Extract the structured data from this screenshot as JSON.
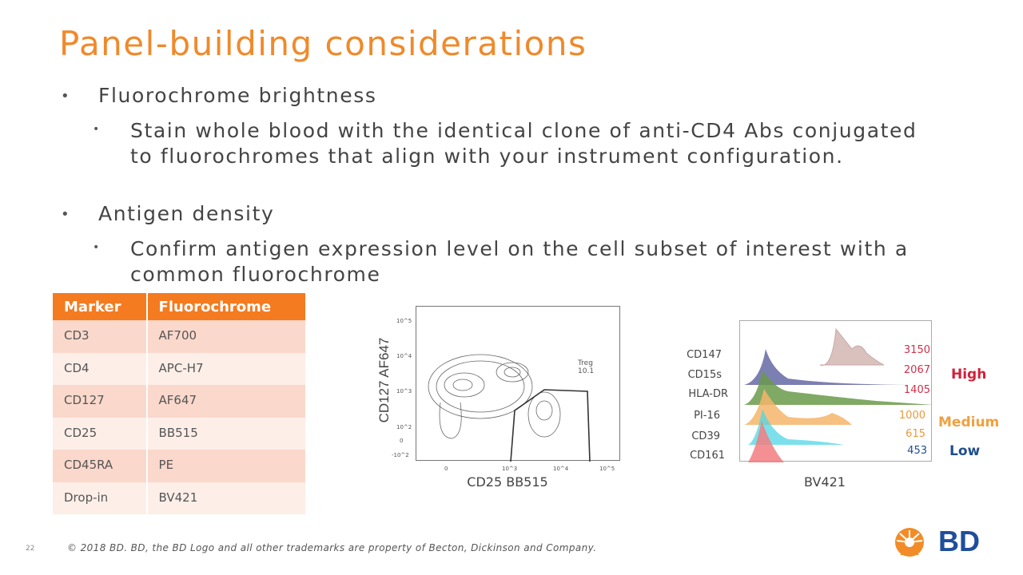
{
  "title": "Panel-building considerations",
  "bullets": [
    {
      "text": "Fluorochrome brightness",
      "sub": "Stain whole blood with the identical clone of anti-CD4 Abs conjugated to fluorochromes that align with your instrument configuration."
    },
    {
      "text": "Antigen density",
      "sub": "Confirm antigen expression level on the cell subset of interest with a common fluorochrome"
    }
  ],
  "table": {
    "headers": [
      "Marker",
      "Fluorochrome"
    ],
    "rows": [
      [
        "CD3",
        "AF700"
      ],
      [
        "CD4",
        "APC-H7"
      ],
      [
        "CD127",
        "AF647"
      ],
      [
        "CD25",
        "BB515"
      ],
      [
        "CD45RA",
        "PE"
      ],
      [
        "Drop-in",
        "BV421"
      ]
    ]
  },
  "contour_plot": {
    "xlabel": "CD25 BB515",
    "ylabel": "CD127 AF647",
    "gate_label": "Treg",
    "gate_value": "10.1",
    "yticks": [
      "10^5",
      "10^4",
      "10^3",
      "10^2",
      "0",
      "-10^2"
    ],
    "xticks": [
      "0",
      "10^3",
      "10^4",
      "10^5"
    ]
  },
  "histogram": {
    "xlabel": "BV421",
    "rows": [
      {
        "marker": "CD147",
        "mfi": "3150",
        "color": "#c9a9a6",
        "valcolor": "#d0314a"
      },
      {
        "marker": "CD15s",
        "mfi": "2067",
        "color": "#5b5f9e",
        "valcolor": "#d0314a"
      },
      {
        "marker": "HLA-DR",
        "mfi": "1405",
        "color": "#6a9a4a",
        "valcolor": "#d0314a"
      },
      {
        "marker": "PI-16",
        "mfi": "1000",
        "color": "#f4b56a",
        "valcolor": "#e89a3c"
      },
      {
        "marker": "CD39",
        "mfi": "615",
        "color": "#4fd6e6",
        "valcolor": "#e89a3c"
      },
      {
        "marker": "CD161",
        "mfi": "453",
        "color": "#f27d80",
        "valcolor": "#1f4e8c"
      }
    ],
    "levels": {
      "high": "High",
      "medium": "Medium",
      "low": "Low"
    }
  },
  "footer": "© 2018 BD. BD, the BD Logo and all other trademarks are property of Becton, Dickinson and Company.",
  "page_number": "22",
  "logo_text": "BD"
}
